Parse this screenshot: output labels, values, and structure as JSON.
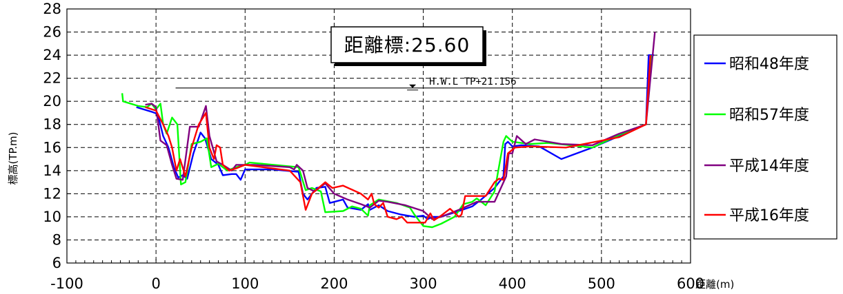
{
  "chart_data": {
    "type": "line",
    "title": "",
    "xlabel": "距離(m)",
    "ylabel": "標高(TP.m)",
    "xlim": [
      -100,
      600
    ],
    "ylim": [
      6,
      28
    ],
    "xticks": [
      -100,
      0,
      100,
      200,
      300,
      400,
      500,
      600
    ],
    "yticks": [
      6,
      8,
      10,
      12,
      14,
      16,
      18,
      20,
      22,
      24,
      26,
      28
    ],
    "x_tick_labels": [
      "-100",
      "0",
      "100",
      "200",
      "300",
      "400",
      "500",
      "600"
    ],
    "y_tick_labels": [
      "6",
      "8",
      "10",
      "12",
      "14",
      "16",
      "18",
      "20",
      "22",
      "24",
      "26",
      "28"
    ],
    "grid": true,
    "legend_position": "right",
    "annotations": {
      "station_label": "距離標:25.60",
      "hwl_label": "H.W.L TP+21.156",
      "hwl_level": 21.156,
      "hwl_x_range": [
        22,
        552
      ],
      "hwl_marker_x": 288
    },
    "series": [
      {
        "name": "昭和48年度",
        "color": "#0000ff",
        "points": [
          [
            -22,
            19.5
          ],
          [
            -5,
            19.1
          ],
          [
            2,
            18.9
          ],
          [
            8,
            17.0
          ],
          [
            14,
            16.0
          ],
          [
            20,
            14.3
          ],
          [
            25,
            13.4
          ],
          [
            30,
            13.6
          ],
          [
            35,
            13.3
          ],
          [
            42,
            15.5
          ],
          [
            50,
            17.3
          ],
          [
            55,
            16.8
          ],
          [
            62,
            15.0
          ],
          [
            70,
            14.5
          ],
          [
            75,
            13.6
          ],
          [
            85,
            13.7
          ],
          [
            90,
            13.7
          ],
          [
            95,
            13.2
          ],
          [
            100,
            14.1
          ],
          [
            130,
            14.1
          ],
          [
            160,
            13.9
          ],
          [
            165,
            12.0
          ],
          [
            170,
            11.5
          ],
          [
            180,
            12.5
          ],
          [
            190,
            12.6
          ],
          [
            195,
            11.2
          ],
          [
            210,
            11.5
          ],
          [
            215,
            10.8
          ],
          [
            230,
            10.6
          ],
          [
            238,
            11.1
          ],
          [
            240,
            10.6
          ],
          [
            250,
            11.0
          ],
          [
            260,
            10.5
          ],
          [
            275,
            10.2
          ],
          [
            290,
            10.0
          ],
          [
            300,
            10.1
          ],
          [
            305,
            9.8
          ],
          [
            310,
            10.0
          ],
          [
            320,
            10.0
          ],
          [
            340,
            10.5
          ],
          [
            355,
            10.9
          ],
          [
            365,
            11.5
          ],
          [
            380,
            12.5
          ],
          [
            390,
            13.5
          ],
          [
            392,
            16.3
          ],
          [
            395,
            16.5
          ],
          [
            400,
            16.1
          ],
          [
            410,
            16.2
          ],
          [
            430,
            16.1
          ],
          [
            455,
            15.0
          ],
          [
            490,
            16.0
          ],
          [
            520,
            17.0
          ],
          [
            550,
            18.0
          ],
          [
            553,
            24.0
          ],
          [
            559,
            24.0
          ]
        ]
      },
      {
        "name": "昭和57年度",
        "color": "#00ff00",
        "points": [
          [
            -38,
            20.7
          ],
          [
            -37,
            20.0
          ],
          [
            -20,
            19.6
          ],
          [
            -10,
            19.5
          ],
          [
            -5,
            19.8
          ],
          [
            0,
            19.3
          ],
          [
            5,
            19.8
          ],
          [
            8,
            18.0
          ],
          [
            12,
            17.2
          ],
          [
            18,
            18.6
          ],
          [
            24,
            18.0
          ],
          [
            28,
            12.8
          ],
          [
            33,
            13.0
          ],
          [
            40,
            16.3
          ],
          [
            50,
            16.5
          ],
          [
            57,
            16.8
          ],
          [
            62,
            14.3
          ],
          [
            70,
            14.6
          ],
          [
            80,
            14.0
          ],
          [
            90,
            14.3
          ],
          [
            100,
            14.5
          ],
          [
            105,
            14.7
          ],
          [
            160,
            14.3
          ],
          [
            168,
            12.3
          ],
          [
            175,
            12.5
          ],
          [
            185,
            12.2
          ],
          [
            190,
            10.4
          ],
          [
            210,
            10.5
          ],
          [
            220,
            10.9
          ],
          [
            230,
            10.7
          ],
          [
            238,
            10.1
          ],
          [
            240,
            11.0
          ],
          [
            250,
            11.5
          ],
          [
            270,
            11.2
          ],
          [
            285,
            10.8
          ],
          [
            290,
            10.2
          ],
          [
            300,
            9.2
          ],
          [
            310,
            9.1
          ],
          [
            320,
            9.4
          ],
          [
            335,
            10.0
          ],
          [
            345,
            11.1
          ],
          [
            355,
            11.3
          ],
          [
            360,
            11.6
          ],
          [
            370,
            11.0
          ],
          [
            380,
            12.2
          ],
          [
            390,
            16.5
          ],
          [
            393,
            17.0
          ],
          [
            400,
            16.5
          ],
          [
            420,
            16.3
          ],
          [
            440,
            16.4
          ],
          [
            490,
            16.0
          ],
          [
            520,
            17.1
          ],
          [
            550,
            18.0
          ],
          [
            556,
            24.0
          ]
        ]
      },
      {
        "name": "平成14年度",
        "color": "#800080",
        "points": [
          [
            -12,
            19.7
          ],
          [
            -5,
            19.8
          ],
          [
            0,
            19.5
          ],
          [
            5,
            16.6
          ],
          [
            12,
            16.2
          ],
          [
            18,
            14.5
          ],
          [
            23,
            13.3
          ],
          [
            30,
            13.2
          ],
          [
            38,
            17.8
          ],
          [
            48,
            17.8
          ],
          [
            56,
            19.6
          ],
          [
            60,
            17.0
          ],
          [
            68,
            14.8
          ],
          [
            75,
            14.5
          ],
          [
            85,
            14.0
          ],
          [
            90,
            14.5
          ],
          [
            110,
            14.5
          ],
          [
            150,
            14.3
          ],
          [
            155,
            14.1
          ],
          [
            158,
            14.5
          ],
          [
            165,
            14.0
          ],
          [
            170,
            12.5
          ],
          [
            178,
            12.2
          ],
          [
            190,
            12.9
          ],
          [
            200,
            12.0
          ],
          [
            215,
            11.5
          ],
          [
            230,
            11.1
          ],
          [
            240,
            10.8
          ],
          [
            250,
            11.4
          ],
          [
            260,
            11.3
          ],
          [
            280,
            11.0
          ],
          [
            300,
            10.5
          ],
          [
            310,
            9.8
          ],
          [
            320,
            10.0
          ],
          [
            340,
            10.6
          ],
          [
            360,
            11.3
          ],
          [
            380,
            11.3
          ],
          [
            393,
            13.5
          ],
          [
            396,
            15.5
          ],
          [
            400,
            15.5
          ],
          [
            405,
            17.0
          ],
          [
            415,
            16.3
          ],
          [
            420,
            16.5
          ],
          [
            425,
            16.7
          ],
          [
            455,
            16.3
          ],
          [
            490,
            16.2
          ],
          [
            520,
            17.2
          ],
          [
            550,
            18.0
          ],
          [
            560,
            26.0
          ]
        ]
      },
      {
        "name": "平成16年度",
        "color": "#ff0000",
        "points": [
          [
            -12,
            19.5
          ],
          [
            0,
            19.2
          ],
          [
            8,
            18.0
          ],
          [
            14,
            17.0
          ],
          [
            18,
            16.0
          ],
          [
            23,
            14.0
          ],
          [
            27,
            15.0
          ],
          [
            33,
            13.5
          ],
          [
            40,
            16.0
          ],
          [
            48,
            18.0
          ],
          [
            52,
            18.5
          ],
          [
            56,
            19.0
          ],
          [
            60,
            16.0
          ],
          [
            65,
            15.0
          ],
          [
            68,
            16.2
          ],
          [
            72,
            16.0
          ],
          [
            75,
            14.5
          ],
          [
            82,
            14.0
          ],
          [
            90,
            14.2
          ],
          [
            100,
            14.5
          ],
          [
            130,
            14.2
          ],
          [
            150,
            14.0
          ],
          [
            162,
            13.0
          ],
          [
            168,
            10.6
          ],
          [
            175,
            12.0
          ],
          [
            190,
            13.0
          ],
          [
            198,
            12.5
          ],
          [
            210,
            12.7
          ],
          [
            230,
            12.0
          ],
          [
            238,
            11.5
          ],
          [
            242,
            12.0
          ],
          [
            245,
            11.1
          ],
          [
            250,
            10.8
          ],
          [
            255,
            11.2
          ],
          [
            260,
            10.0
          ],
          [
            270,
            9.8
          ],
          [
            276,
            10.0
          ],
          [
            282,
            9.5
          ],
          [
            290,
            9.5
          ],
          [
            302,
            9.5
          ],
          [
            308,
            10.3
          ],
          [
            312,
            9.7
          ],
          [
            320,
            10.1
          ],
          [
            330,
            10.7
          ],
          [
            340,
            10.0
          ],
          [
            343,
            10.2
          ],
          [
            347,
            11.8
          ],
          [
            370,
            11.8
          ],
          [
            380,
            13.0
          ],
          [
            385,
            13.3
          ],
          [
            390,
            13.2
          ],
          [
            395,
            15.5
          ],
          [
            403,
            16.0
          ],
          [
            420,
            16.1
          ],
          [
            460,
            16.0
          ],
          [
            520,
            16.9
          ],
          [
            550,
            18.0
          ],
          [
            555,
            24.0
          ]
        ]
      }
    ]
  }
}
